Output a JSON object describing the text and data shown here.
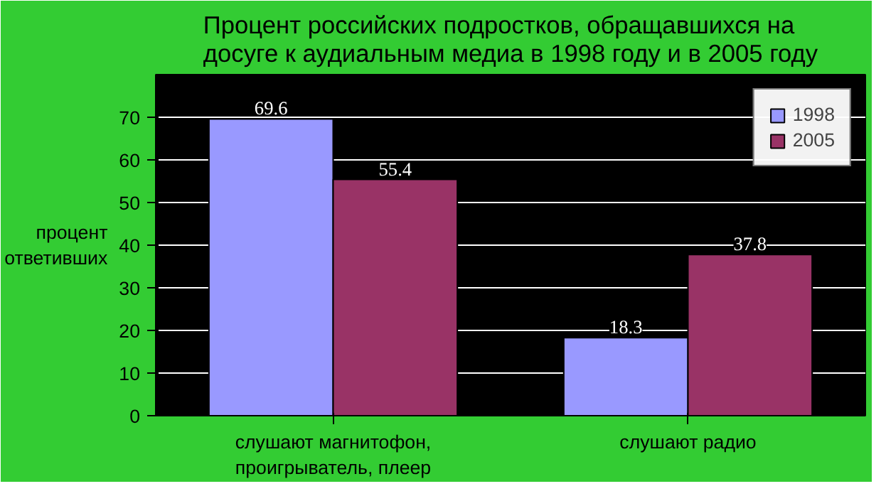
{
  "chart_data": {
    "type": "bar",
    "title": "Процент российских подростков, обращавшихся на досуге к аудиальным медиа в 1998 году и в 2005 году",
    "ylabel": "процент ответивших",
    "categories": [
      "слушают магнитофон, проигрыватель, плеер",
      "слушают радио"
    ],
    "series": [
      {
        "name": "1998",
        "color": "#9999ff",
        "values": [
          69.6,
          18.3
        ]
      },
      {
        "name": "2005",
        "color": "#993366",
        "values": [
          55.4,
          37.8
        ]
      }
    ],
    "ylim": [
      0,
      80
    ],
    "yticks": [
      0,
      10,
      20,
      30,
      40,
      50,
      60,
      70
    ],
    "grid": "y",
    "legend": "top right",
    "data_labels": true
  }
}
